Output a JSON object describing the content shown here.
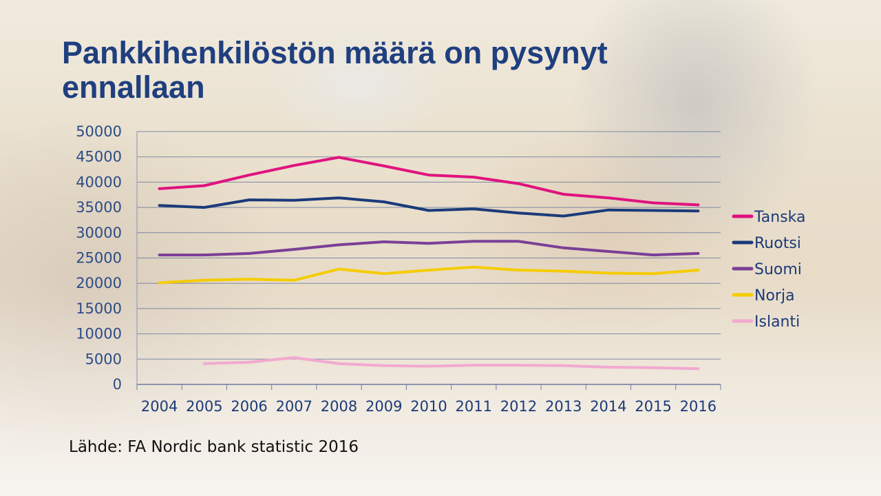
{
  "title": "Pankkihenkilöstön määrä on pysynyt ennallaan",
  "source": "Lähde: FA Nordic bank statistic 2016",
  "chart_data": {
    "type": "line",
    "x": [
      "2004",
      "2005",
      "2006",
      "2007",
      "2008",
      "2009",
      "2010",
      "2011",
      "2012",
      "2013",
      "2014",
      "2015",
      "2016"
    ],
    "ylim": [
      0,
      50000
    ],
    "yticks": [
      0,
      5000,
      10000,
      15000,
      20000,
      25000,
      30000,
      35000,
      40000,
      45000,
      50000
    ],
    "grid": true,
    "legend_position": "right",
    "series": [
      {
        "name": "Tanska",
        "color": "#e0127f",
        "values": [
          38700,
          39300,
          41400,
          43300,
          44900,
          43200,
          41400,
          41000,
          39700,
          37600,
          36900,
          35900,
          35500
        ]
      },
      {
        "name": "Ruotsi",
        "color": "#1b3a7a",
        "values": [
          35400,
          35000,
          36500,
          36400,
          36900,
          36100,
          34400,
          34700,
          33900,
          33300,
          34500,
          34400,
          34300
        ]
      },
      {
        "name": "Suomi",
        "color": "#7b3f96",
        "values": [
          25600,
          25600,
          25900,
          26700,
          27600,
          28200,
          27900,
          28300,
          28300,
          27000,
          26300,
          25600,
          25900
        ]
      },
      {
        "name": "Norja",
        "color": "#f5cc00",
        "values": [
          20100,
          20600,
          20800,
          20600,
          22800,
          21900,
          22600,
          23200,
          22600,
          22400,
          22000,
          21900,
          22600
        ]
      },
      {
        "name": "Islanti",
        "color": "#f2a9d0",
        "values": [
          null,
          4100,
          4400,
          5300,
          4100,
          3700,
          3600,
          3800,
          3800,
          3700,
          3400,
          3300,
          3100
        ]
      }
    ]
  }
}
